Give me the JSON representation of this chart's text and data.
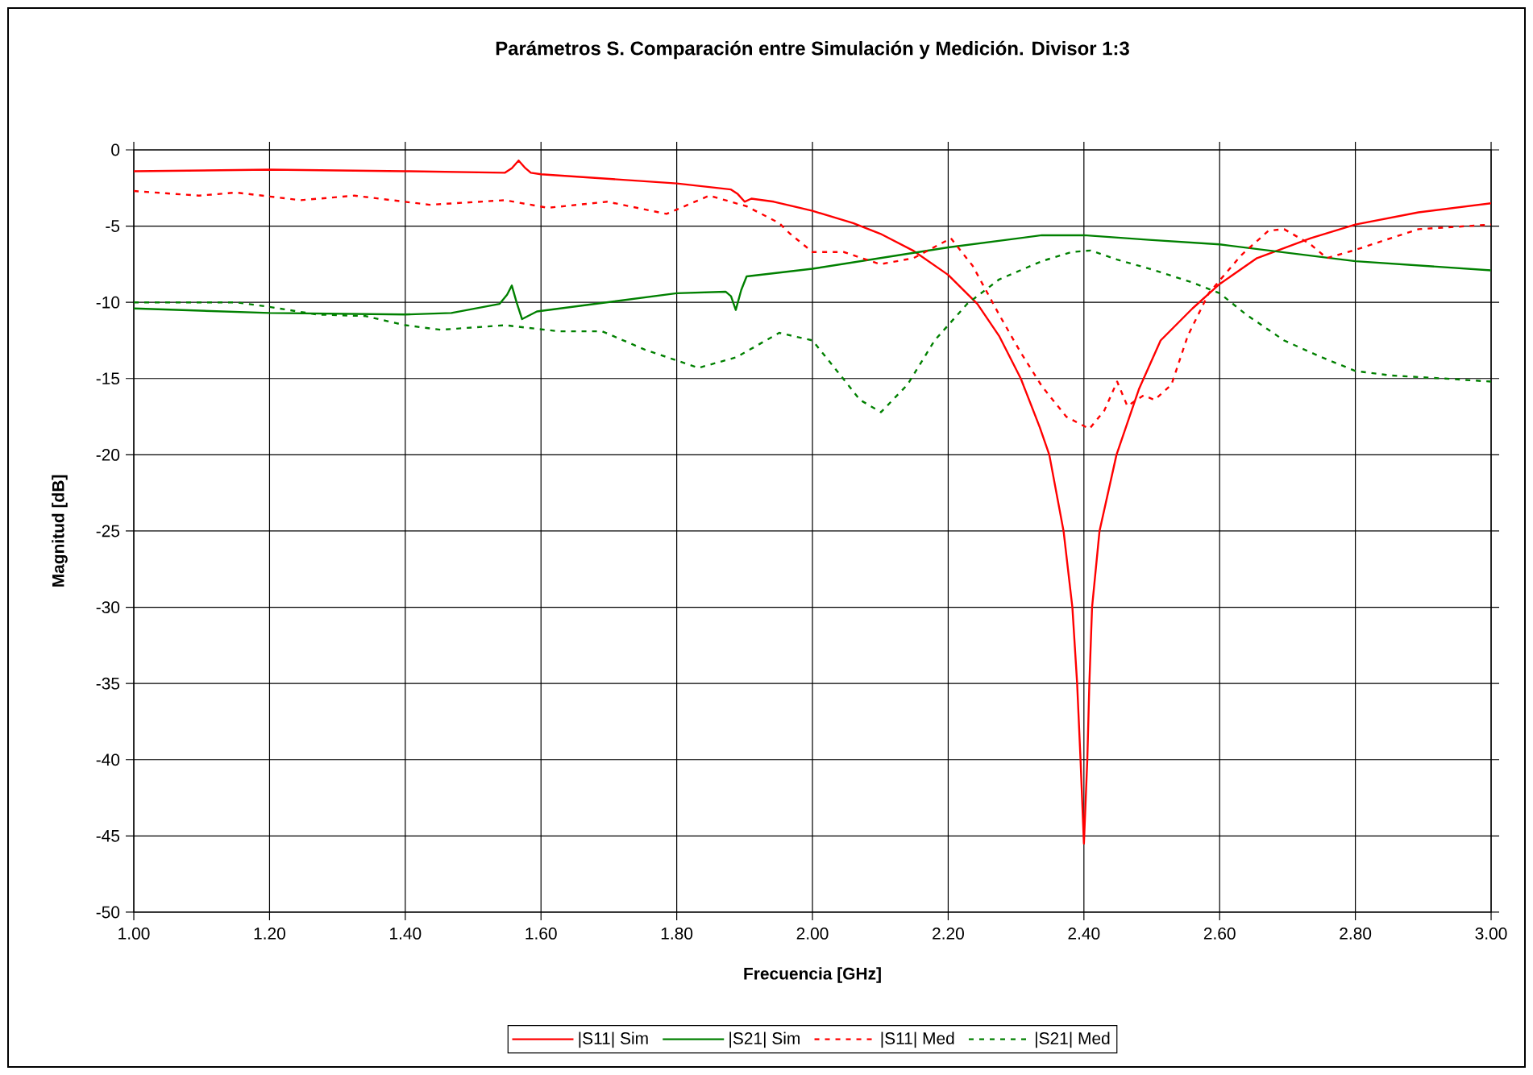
{
  "chart_data": {
    "type": "line",
    "title": "Parámetros S. Comparación entre Simulación y Medición. Divisor 1:3",
    "xlabel": "Frecuencia [GHz]",
    "ylabel": "Magnitud [dB]",
    "xlim": [
      1,
      3
    ],
    "ylim": [
      -50,
      0
    ],
    "xticks": [
      {
        "value": 1,
        "label": "1.00"
      },
      {
        "value": 1.2,
        "label": "1.20"
      },
      {
        "value": 1.4,
        "label": "1.40"
      },
      {
        "value": 1.6,
        "label": "1.60"
      },
      {
        "value": 1.8,
        "label": "1.80"
      },
      {
        "value": 2,
        "label": "2.00"
      },
      {
        "value": 2.2,
        "label": "2.20"
      },
      {
        "value": 2.4,
        "label": "2.40"
      },
      {
        "value": 2.6,
        "label": "2.60"
      },
      {
        "value": 2.8,
        "label": "2.80"
      },
      {
        "value": 3,
        "label": "3.00"
      }
    ],
    "yticks": [
      0,
      -5,
      -10,
      -15,
      -20,
      -25,
      -30,
      -35,
      -40,
      -45,
      -50
    ],
    "grid": true,
    "legend": "bottom",
    "series": [
      {
        "name": "|S11| Sim",
        "color": "#ff0000",
        "line_style": "solid",
        "x": [
          1.0,
          1.2,
          1.4,
          1.547,
          1.557,
          1.567,
          1.577,
          1.585,
          1.6,
          1.8,
          1.88,
          1.89,
          1.9,
          1.91,
          1.943,
          2.0,
          2.06,
          2.1,
          2.148,
          2.2,
          2.243,
          2.275,
          2.307,
          2.335,
          2.349,
          2.37,
          2.383,
          2.39,
          2.395,
          2.4,
          2.405,
          2.408,
          2.412,
          2.423,
          2.448,
          2.481,
          2.513,
          2.56,
          2.6,
          2.655,
          2.734,
          2.8,
          2.893,
          3.0
        ],
        "values": [
          -1.4,
          -1.3,
          -1.4,
          -1.5,
          -1.2,
          -0.7,
          -1.2,
          -1.5,
          -1.6,
          -2.2,
          -2.6,
          -2.9,
          -3.4,
          -3.2,
          -3.4,
          -4.0,
          -4.8,
          -5.5,
          -6.6,
          -8.2,
          -10.1,
          -12.2,
          -15.0,
          -18.2,
          -20.0,
          -25.0,
          -30.0,
          -35.0,
          -40.0,
          -45.5,
          -40.0,
          -35.0,
          -30.0,
          -25.0,
          -20.0,
          -15.7,
          -12.5,
          -10.4,
          -8.8,
          -7.1,
          -5.8,
          -4.9,
          -4.1,
          -3.5
        ]
      },
      {
        "name": "|S21| Sim",
        "color": "#008000",
        "line_style": "solid",
        "x": [
          1.0,
          1.2,
          1.4,
          1.468,
          1.539,
          1.55,
          1.557,
          1.564,
          1.572,
          1.594,
          1.8,
          1.872,
          1.88,
          1.887,
          1.895,
          1.903,
          2.0,
          2.2,
          2.338,
          2.4,
          2.496,
          2.6,
          2.8,
          3.0
        ],
        "values": [
          -10.4,
          -10.7,
          -10.8,
          -10.7,
          -10.1,
          -9.5,
          -8.9,
          -10.0,
          -11.1,
          -10.6,
          -9.4,
          -9.3,
          -9.6,
          -10.5,
          -9.2,
          -8.3,
          -7.8,
          -6.4,
          -5.6,
          -5.6,
          -5.9,
          -6.2,
          -7.3,
          -7.9
        ]
      },
      {
        "name": "|S11| Med",
        "color": "#ff0000",
        "line_style": "dotted",
        "x": [
          1.0,
          1.096,
          1.151,
          1.246,
          1.325,
          1.436,
          1.547,
          1.61,
          1.698,
          1.785,
          1.848,
          1.903,
          1.951,
          1.967,
          2.0,
          2.046,
          2.1,
          2.149,
          2.204,
          2.236,
          2.275,
          2.307,
          2.338,
          2.374,
          2.408,
          2.43,
          2.449,
          2.464,
          2.488,
          2.504,
          2.529,
          2.553,
          2.584,
          2.632,
          2.672,
          2.695,
          2.734,
          2.758,
          2.797,
          2.893,
          3.0
        ],
        "values": [
          -2.7,
          -3.0,
          -2.8,
          -3.3,
          -3.0,
          -3.6,
          -3.3,
          -3.8,
          -3.4,
          -4.2,
          -3.0,
          -3.7,
          -4.8,
          -5.5,
          -6.7,
          -6.7,
          -7.5,
          -7.1,
          -5.8,
          -7.6,
          -10.8,
          -13.3,
          -15.5,
          -17.5,
          -18.3,
          -17.1,
          -15.2,
          -16.8,
          -16.1,
          -16.4,
          -15.4,
          -12.2,
          -9.4,
          -6.9,
          -5.3,
          -5.2,
          -6.2,
          -7.1,
          -6.6,
          -5.2,
          -4.9
        ]
      },
      {
        "name": "|S21| Med",
        "color": "#008000",
        "line_style": "dotted",
        "x": [
          1.0,
          1.151,
          1.2,
          1.27,
          1.341,
          1.4,
          1.452,
          1.547,
          1.626,
          1.69,
          1.753,
          1.832,
          1.888,
          1.951,
          2.0,
          2.038,
          2.07,
          2.101,
          2.14,
          2.18,
          2.228,
          2.275,
          2.338,
          2.382,
          2.41,
          2.449,
          2.497,
          2.56,
          2.6,
          2.639,
          2.695,
          2.75,
          2.8,
          2.853,
          2.932,
          3.0
        ],
        "values": [
          -10.0,
          -10.0,
          -10.3,
          -10.8,
          -10.9,
          -11.5,
          -11.8,
          -11.5,
          -11.9,
          -11.9,
          -13.1,
          -14.3,
          -13.6,
          -12.0,
          -12.5,
          -14.6,
          -16.4,
          -17.2,
          -15.4,
          -12.5,
          -10.1,
          -8.5,
          -7.3,
          -6.7,
          -6.6,
          -7.2,
          -7.8,
          -8.7,
          -9.4,
          -10.8,
          -12.5,
          -13.6,
          -14.5,
          -14.8,
          -15.0,
          -15.2
        ]
      }
    ]
  }
}
